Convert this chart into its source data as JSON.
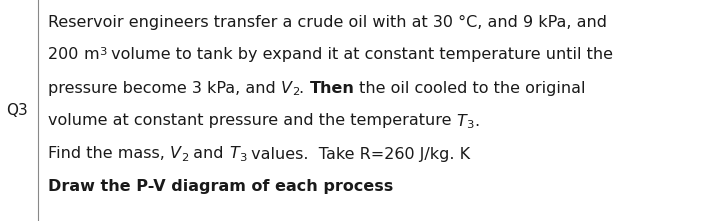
{
  "background_color": "#ffffff",
  "q_label": "Q3",
  "text_color": "#1a1a1a",
  "divider_color": "#888888",
  "fontsize": 11.5,
  "figwidth": 7.07,
  "figheight": 2.21,
  "dpi": 100,
  "lines": [
    {
      "parts": [
        {
          "t": "Reservoir engineers transfer a crude oil with at 30 °C, and 9 kPa, and",
          "bold": false,
          "italic": false,
          "sup": false,
          "sub": false
        }
      ]
    },
    {
      "parts": [
        {
          "t": "200 ",
          "bold": false,
          "italic": false,
          "sup": false,
          "sub": false
        },
        {
          "t": "m",
          "bold": false,
          "italic": false,
          "sup": false,
          "sub": false
        },
        {
          "t": "3",
          "bold": false,
          "italic": false,
          "sup": true,
          "sub": false
        },
        {
          "t": " volume to tank by expand it at constant temperature until the",
          "bold": false,
          "italic": false,
          "sup": false,
          "sub": false
        }
      ]
    },
    {
      "parts": [
        {
          "t": "pressure become 3 kPa, and ",
          "bold": false,
          "italic": false,
          "sup": false,
          "sub": false
        },
        {
          "t": "V",
          "bold": false,
          "italic": true,
          "sup": false,
          "sub": false
        },
        {
          "t": "2",
          "bold": false,
          "italic": false,
          "sup": false,
          "sub": true
        },
        {
          "t": ". ",
          "bold": false,
          "italic": false,
          "sup": false,
          "sub": false
        },
        {
          "t": "Then",
          "bold": true,
          "italic": false,
          "sup": false,
          "sub": false
        },
        {
          "t": " the oil cooled to the original",
          "bold": false,
          "italic": false,
          "sup": false,
          "sub": false
        }
      ]
    },
    {
      "parts": [
        {
          "t": "volume at constant pressure and the temperature ",
          "bold": false,
          "italic": false,
          "sup": false,
          "sub": false
        },
        {
          "t": "T",
          "bold": false,
          "italic": true,
          "sup": false,
          "sub": false
        },
        {
          "t": "3",
          "bold": false,
          "italic": false,
          "sup": false,
          "sub": true
        },
        {
          "t": ".",
          "bold": false,
          "italic": false,
          "sup": false,
          "sub": false
        }
      ]
    },
    {
      "parts": [
        {
          "t": "Find the mass, ",
          "bold": false,
          "italic": false,
          "sup": false,
          "sub": false
        },
        {
          "t": "V",
          "bold": false,
          "italic": true,
          "sup": false,
          "sub": false
        },
        {
          "t": "2",
          "bold": false,
          "italic": false,
          "sup": false,
          "sub": true
        },
        {
          "t": " and ",
          "bold": false,
          "italic": false,
          "sup": false,
          "sub": false
        },
        {
          "t": "T",
          "bold": false,
          "italic": true,
          "sup": false,
          "sub": false
        },
        {
          "t": "3",
          "bold": false,
          "italic": false,
          "sup": false,
          "sub": true
        },
        {
          "t": " values.  Take R=260 J/kg. K",
          "bold": false,
          "italic": false,
          "sup": false,
          "sub": false
        }
      ]
    },
    {
      "parts": [
        {
          "t": "Draw the P-V diagram of each process",
          "bold": true,
          "italic": false,
          "sup": false,
          "sub": false
        }
      ]
    }
  ]
}
